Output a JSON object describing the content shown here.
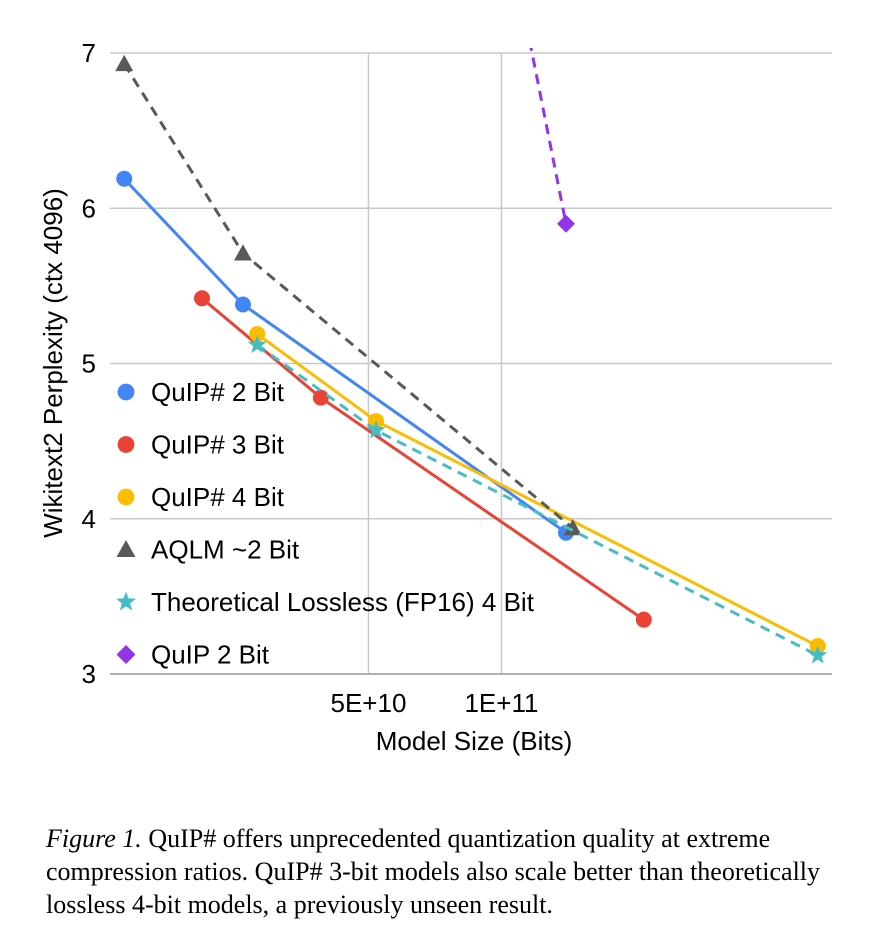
{
  "chart_data": {
    "type": "line",
    "title": "",
    "xlabel": "Model Size (Bits)",
    "ylabel": "Wikitext2 Perplexity (ctx 4096)",
    "x_scale": "log",
    "xlim": [
      13000000000.0,
      560000000000.0
    ],
    "ylim": [
      3,
      7
    ],
    "x_ticks": [
      {
        "value": 50000000000.0,
        "label": "5E+10"
      },
      {
        "value": 100000000000.0,
        "label": "1E+11"
      }
    ],
    "y_ticks": [
      {
        "value": 3,
        "label": "3"
      },
      {
        "value": 4,
        "label": "4"
      },
      {
        "value": 5,
        "label": "5"
      },
      {
        "value": 6,
        "label": "6"
      },
      {
        "value": 7,
        "label": "7"
      }
    ],
    "grid": true,
    "legend_position": "left",
    "series": [
      {
        "name": "QuIP# 2 Bit",
        "color": "#4285F4",
        "marker": "circle",
        "line": "solid",
        "x": [
          14000000000.0,
          26000000000.0,
          140000000000.0
        ],
        "y": [
          6.19,
          5.38,
          3.91
        ]
      },
      {
        "name": "QuIP# 3 Bit",
        "color": "#EA4335",
        "marker": "circle",
        "line": "solid",
        "x": [
          21000000000.0,
          39000000000.0,
          210000000000.0
        ],
        "y": [
          5.42,
          4.78,
          3.35
        ]
      },
      {
        "name": "QuIP# 4 Bit",
        "color": "#FBBC04",
        "marker": "circle",
        "line": "solid",
        "x": [
          28000000000.0,
          52000000000.0,
          520000000000.0
        ],
        "y": [
          5.19,
          4.63,
          3.18
        ]
      },
      {
        "name": "AQLM ~2 Bit",
        "color": "#595959",
        "marker": "triangle",
        "line": "dashed",
        "x": [
          14000000000.0,
          26000000000.0,
          145000000000.0
        ],
        "y": [
          6.93,
          5.71,
          3.94
        ]
      },
      {
        "name": "Theoretical Lossless (FP16) 4 Bit",
        "color": "#46BDC6",
        "marker": "star",
        "line": "dashed",
        "x": [
          28000000000.0,
          52000000000.0,
          520000000000.0
        ],
        "y": [
          5.12,
          4.57,
          3.12
        ]
      },
      {
        "name": "QuIP 2 Bit",
        "color": "#9334E6",
        "marker": "diamond",
        "line": "dashed",
        "x": [
          110000000000.0,
          140000000000.0
        ],
        "y": [
          7.4,
          5.9
        ]
      }
    ]
  },
  "caption": {
    "label": "Figure 1.",
    "text": " QuIP# offers unprecedented quantization quality at extreme compression ratios. QuIP# 3-bit models also scale better than theoretically lossless 4-bit models, a previously unseen result."
  }
}
